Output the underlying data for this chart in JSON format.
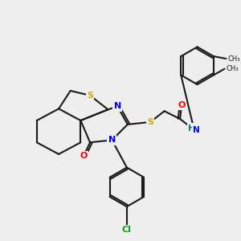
{
  "bg_color": "#eeeeee",
  "atom_colors": {
    "S": "#ccaa00",
    "N": "#0000ee",
    "O": "#ff0000",
    "Cl": "#00aa00",
    "C": "#1a1a1a",
    "H": "#007070"
  }
}
